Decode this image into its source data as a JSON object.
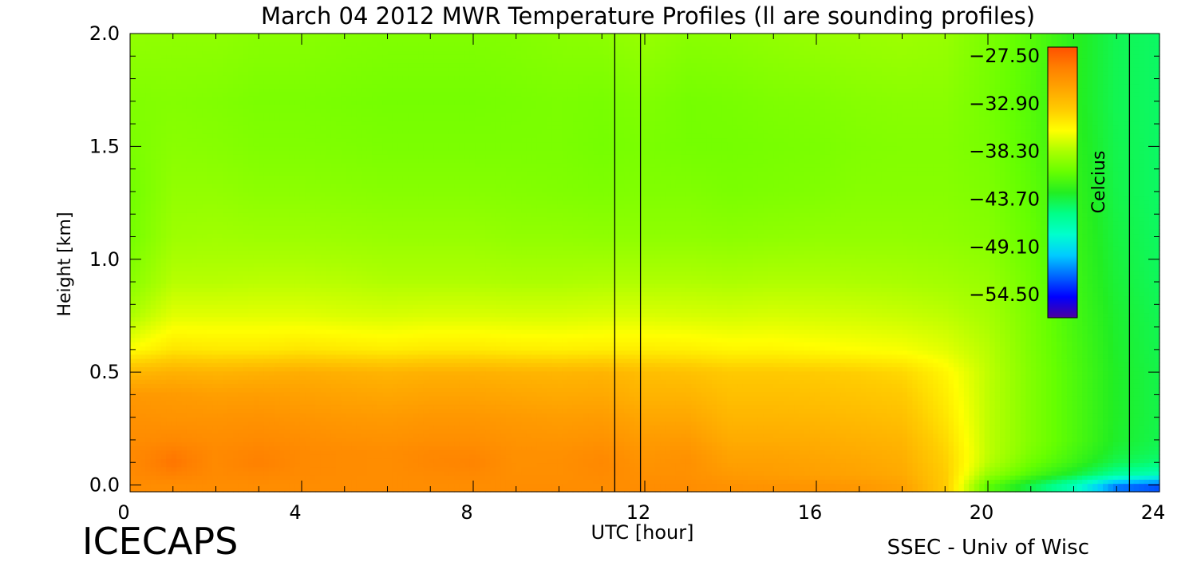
{
  "chart_data": {
    "type": "heatmap",
    "title": "March 04 2012 MWR Temperature Profiles (ll are sounding profiles)",
    "xlabel": "UTC [hour]",
    "ylabel": "Height [km]",
    "xlim": [
      0,
      24
    ],
    "ylim": [
      -0.03,
      2.0
    ],
    "x_ticks": [
      0,
      4,
      8,
      12,
      16,
      20,
      24
    ],
    "x_tick_labels": [
      "0",
      "4",
      "8",
      "12",
      "16",
      "20",
      "24"
    ],
    "y_ticks": [
      0.0,
      0.5,
      1.0,
      1.5,
      2.0
    ],
    "y_tick_labels": [
      "0.0",
      "0.5",
      "1.0",
      "1.5",
      "2.0"
    ],
    "x_minor_step": 1,
    "y_minor_step": 0.1,
    "sounding_times": [
      11.3,
      11.9,
      23.3
    ],
    "colorbar": {
      "label": "Celcius",
      "min": -57.2,
      "max": -26.6,
      "tick_values": [
        -27.5,
        -32.9,
        -38.3,
        -43.7,
        -49.1,
        -54.5
      ],
      "tick_labels": [
        "−27.50",
        "−32.90",
        "−38.30",
        "−43.70",
        "−49.10",
        "−54.50"
      ],
      "colormap": [
        "#4b00a0",
        "#0000ff",
        "#0066ff",
        "#00ccff",
        "#00ffcc",
        "#00ff88",
        "#22ee22",
        "#66ff00",
        "#aaff00",
        "#ffff00",
        "#ffcc00",
        "#ffa500",
        "#ff8000",
        "#ff5000"
      ]
    },
    "heights_km": [
      0.0,
      0.05,
      0.1,
      0.15,
      0.2,
      0.3,
      0.4,
      0.5,
      0.6,
      0.75,
      0.9,
      1.1,
      1.3,
      1.5,
      1.7,
      2.0
    ],
    "times_hr": [
      0,
      1,
      2,
      3,
      4,
      5,
      6,
      7,
      8,
      9,
      10,
      11,
      12,
      13,
      14,
      15,
      16,
      17,
      18,
      19,
      20,
      21,
      22,
      23,
      24
    ],
    "temperature_c": [
      [
        -29.8,
        -29.6,
        -29.6,
        -29.6,
        -29.8,
        -30.0,
        -30.5,
        -32.5,
        -36.0,
        -38.3,
        -39.5,
        -40.2,
        -40.3,
        -40.0,
        -39.8,
        -39.2
      ],
      [
        -29.8,
        -29.0,
        -28.4,
        -28.8,
        -29.5,
        -30.2,
        -30.6,
        -32.0,
        -34.8,
        -36.8,
        -38.0,
        -38.8,
        -39.2,
        -39.5,
        -39.7,
        -39.3
      ],
      [
        -29.8,
        -29.6,
        -29.6,
        -29.6,
        -29.8,
        -30.2,
        -30.9,
        -32.2,
        -35.0,
        -36.8,
        -38.0,
        -38.7,
        -39.2,
        -39.6,
        -39.8,
        -39.3
      ],
      [
        -29.8,
        -29.4,
        -29.0,
        -29.2,
        -29.6,
        -30.1,
        -30.8,
        -32.0,
        -35.0,
        -36.8,
        -37.9,
        -38.8,
        -39.4,
        -39.8,
        -40.0,
        -39.5
      ],
      [
        -29.8,
        -29.6,
        -29.6,
        -29.6,
        -29.8,
        -30.3,
        -31.0,
        -31.8,
        -34.8,
        -36.8,
        -37.9,
        -38.8,
        -39.4,
        -39.8,
        -40.0,
        -39.5
      ],
      [
        -29.8,
        -29.7,
        -29.7,
        -29.7,
        -30.0,
        -30.5,
        -31.2,
        -32.0,
        -35.0,
        -37.0,
        -38.0,
        -38.9,
        -39.5,
        -39.9,
        -40.1,
        -39.7
      ],
      [
        -29.8,
        -29.8,
        -29.8,
        -29.8,
        -30.1,
        -30.6,
        -31.4,
        -32.2,
        -35.2,
        -37.1,
        -38.2,
        -39.0,
        -39.6,
        -40.0,
        -40.2,
        -39.8
      ],
      [
        -29.8,
        -29.6,
        -29.4,
        -29.5,
        -29.9,
        -30.4,
        -31.2,
        -32.0,
        -35.0,
        -37.0,
        -38.2,
        -39.0,
        -39.6,
        -40.0,
        -40.2,
        -39.8
      ],
      [
        -29.8,
        -29.5,
        -29.2,
        -29.5,
        -29.9,
        -30.4,
        -31.2,
        -32.0,
        -35.0,
        -37.0,
        -38.2,
        -39.0,
        -39.6,
        -40.0,
        -40.2,
        -39.8
      ],
      [
        -29.8,
        -29.9,
        -30.0,
        -30.0,
        -30.2,
        -30.6,
        -31.4,
        -32.2,
        -35.2,
        -37.1,
        -38.3,
        -39.2,
        -39.7,
        -40.0,
        -40.1,
        -39.7
      ],
      [
        -29.8,
        -29.9,
        -29.9,
        -30.0,
        -30.3,
        -30.8,
        -31.6,
        -32.3,
        -35.3,
        -37.1,
        -38.3,
        -39.2,
        -39.8,
        -40.0,
        -40.0,
        -39.5
      ],
      [
        -29.8,
        -29.6,
        -29.5,
        -29.7,
        -30.1,
        -30.7,
        -31.5,
        -32.2,
        -35.2,
        -37.0,
        -38.2,
        -39.3,
        -39.9,
        -40.2,
        -40.1,
        -39.4
      ],
      [
        -29.8,
        -30.0,
        -30.2,
        -30.4,
        -30.7,
        -31.4,
        -32.2,
        -32.8,
        -35.2,
        -37.0,
        -38.2,
        -39.3,
        -39.8,
        -40.0,
        -39.8,
        -39.0
      ],
      [
        -29.8,
        -30.0,
        -30.0,
        -30.2,
        -30.6,
        -31.4,
        -32.2,
        -33.0,
        -35.3,
        -37.1,
        -38.2,
        -39.3,
        -39.8,
        -40.2,
        -40.2,
        -39.5
      ],
      [
        -30.1,
        -30.6,
        -31.0,
        -31.3,
        -31.7,
        -32.3,
        -32.9,
        -33.5,
        -35.6,
        -37.2,
        -38.3,
        -39.4,
        -40.0,
        -40.2,
        -40.1,
        -39.4
      ],
      [
        -30.2,
        -30.8,
        -31.0,
        -31.3,
        -31.7,
        -32.3,
        -32.9,
        -33.5,
        -35.6,
        -37.1,
        -38.2,
        -39.3,
        -39.9,
        -40.1,
        -39.9,
        -39.2
      ],
      [
        -30.3,
        -31.0,
        -31.2,
        -31.5,
        -31.8,
        -32.4,
        -33.0,
        -33.6,
        -35.8,
        -37.2,
        -38.2,
        -39.2,
        -39.8,
        -40.0,
        -39.8,
        -39.0
      ],
      [
        -30.5,
        -31.2,
        -31.4,
        -31.7,
        -32.0,
        -32.6,
        -33.2,
        -33.8,
        -36.0,
        -37.3,
        -38.3,
        -39.2,
        -39.6,
        -39.8,
        -39.6,
        -38.9
      ],
      [
        -31.0,
        -31.6,
        -31.8,
        -32.0,
        -32.3,
        -32.9,
        -33.5,
        -34.2,
        -36.2,
        -37.5,
        -38.4,
        -39.2,
        -39.6,
        -39.7,
        -39.5,
        -38.8
      ],
      [
        -33.5,
        -33.6,
        -33.8,
        -34.0,
        -34.3,
        -34.8,
        -35.2,
        -35.6,
        -36.8,
        -37.8,
        -38.6,
        -39.3,
        -39.6,
        -39.7,
        -39.5,
        -39.0
      ],
      [
        -41.0,
        -39.0,
        -38.0,
        -37.8,
        -37.8,
        -37.8,
        -37.8,
        -37.8,
        -38.0,
        -38.5,
        -39.0,
        -39.6,
        -39.9,
        -40.1,
        -40.2,
        -40.0
      ],
      [
        -44.0,
        -41.5,
        -40.5,
        -40.0,
        -39.8,
        -39.8,
        -39.8,
        -39.8,
        -39.9,
        -40.0,
        -40.3,
        -40.7,
        -41.0,
        -41.2,
        -41.3,
        -41.2
      ],
      [
        -47.0,
        -43.5,
        -42.2,
        -41.8,
        -41.5,
        -41.5,
        -41.5,
        -41.5,
        -41.6,
        -41.8,
        -42.0,
        -42.2,
        -42.4,
        -42.6,
        -42.8,
        -42.8
      ],
      [
        -52.0,
        -46.0,
        -44.2,
        -43.6,
        -43.3,
        -43.2,
        -43.2,
        -43.2,
        -43.3,
        -43.4,
        -43.6,
        -43.8,
        -44.0,
        -44.1,
        -44.2,
        -44.2
      ],
      [
        -53.0,
        -47.0,
        -45.0,
        -44.4,
        -44.1,
        -44.0,
        -44.0,
        -44.0,
        -44.1,
        -44.2,
        -44.4,
        -44.5,
        -44.6,
        -44.6,
        -44.6,
        -44.6
      ]
    ]
  },
  "footer": {
    "left_label": "ICECAPS",
    "right_label": "SSEC - Univ of Wisc"
  }
}
